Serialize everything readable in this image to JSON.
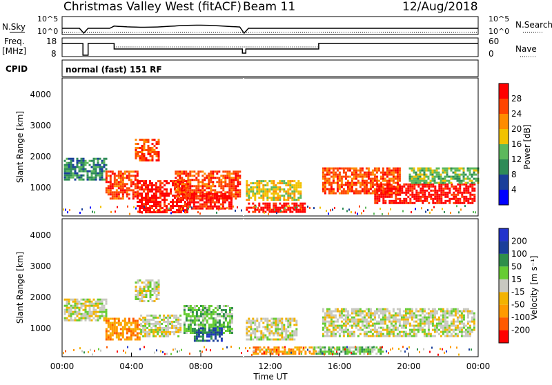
{
  "header": {
    "title": "Christmas Valley West (fitACF)",
    "beam": "Beam 11",
    "date": "12/Aug/2018"
  },
  "top_panels": {
    "nsky_label": "N.Sky",
    "nsearch_label": "N.Search",
    "noise_ticks": [
      "10^5",
      "10^0"
    ],
    "freq_label_1": "Freq.",
    "freq_label_2": "[MHz]",
    "freq_ticks": [
      "18",
      "8"
    ],
    "nave_label": "Nave",
    "nave_ticks": [
      "60",
      "0"
    ],
    "cpid_label": "CPID",
    "cpid_text": "normal (fast) 151 RF"
  },
  "colors": {
    "power": [
      "#0000ff",
      "#1a3f9a",
      "#2e8b57",
      "#5cb85c",
      "#f2c200",
      "#ff8c00",
      "#ff4500",
      "#ff0000"
    ],
    "velocity": [
      "#ff0000",
      "#ff5a00",
      "#ff9a00",
      "#f3b300",
      "#c8c8c0",
      "#66cc33",
      "#2f8f4a",
      "#1a3f9a",
      "#2233cc"
    ]
  },
  "chart_data": [
    {
      "type": "heatmap",
      "name": "power",
      "ylabel": "Slant Range [km]",
      "yticks": [
        1000,
        2000,
        3000,
        4000
      ],
      "ylim": [
        180,
        4500
      ],
      "xlim": [
        "00:00",
        "24:00"
      ],
      "colorbar_label": "Power [dB]",
      "colorbar_ticks": [
        "4",
        "8",
        "12",
        "16",
        "20",
        "24",
        "28"
      ],
      "regions": [
        {
          "t0": 0.1,
          "t1": 2.6,
          "r0": 1300,
          "r1": 2000,
          "level": 2
        },
        {
          "t0": 2.5,
          "t1": 4.3,
          "r0": 700,
          "r1": 1600,
          "level": 6
        },
        {
          "t0": 4.2,
          "t1": 5.6,
          "r0": 1900,
          "r1": 2600,
          "level": 6
        },
        {
          "t0": 4.3,
          "t1": 7.2,
          "r0": 300,
          "r1": 1300,
          "level": 7
        },
        {
          "t0": 6.5,
          "t1": 10.3,
          "r0": 700,
          "r1": 1600,
          "level": 6
        },
        {
          "t0": 7.2,
          "t1": 9.8,
          "r0": 400,
          "r1": 900,
          "level": 7
        },
        {
          "t0": 10.6,
          "t1": 13.8,
          "r0": 700,
          "r1": 1300,
          "level": 4
        },
        {
          "t0": 10.6,
          "t1": 14.0,
          "r0": 300,
          "r1": 600,
          "level": 7
        },
        {
          "t0": 15.0,
          "t1": 19.5,
          "r0": 900,
          "r1": 1700,
          "level": 6
        },
        {
          "t0": 18.0,
          "t1": 23.8,
          "r0": 600,
          "r1": 1200,
          "level": 7
        },
        {
          "t0": 20.0,
          "t1": 24.0,
          "r0": 1200,
          "r1": 1700,
          "level": 3
        }
      ]
    },
    {
      "type": "heatmap",
      "name": "velocity",
      "ylabel": "Slant Range [km]",
      "yticks": [
        1000,
        2000,
        3000,
        4000
      ],
      "ylim": [
        180,
        4500
      ],
      "xlim": [
        "00:00",
        "24:00"
      ],
      "xticks": [
        "00:00",
        "04:00",
        "08:00",
        "12:00",
        "16:00",
        "20:00",
        "00:00"
      ],
      "xlabel": "Time UT",
      "colorbar_label": "Velocity [m s⁻¹]",
      "colorbar_ticks": [
        "-200",
        "-100",
        "-50",
        "-15",
        "15",
        "50",
        "100",
        "200"
      ],
      "regions": [
        {
          "t0": 0.1,
          "t1": 2.6,
          "r0": 1300,
          "r1": 2000,
          "level": 4
        },
        {
          "t0": 2.5,
          "t1": 4.5,
          "r0": 700,
          "r1": 1400,
          "level": 2
        },
        {
          "t0": 4.2,
          "t1": 5.6,
          "r0": 1900,
          "r1": 2600,
          "level": 4
        },
        {
          "t0": 4.5,
          "t1": 6.8,
          "r0": 800,
          "r1": 1500,
          "level": 4
        },
        {
          "t0": 7.0,
          "t1": 9.8,
          "r0": 900,
          "r1": 1800,
          "level": 5
        },
        {
          "t0": 7.6,
          "t1": 9.2,
          "r0": 700,
          "r1": 1100,
          "level": 7
        },
        {
          "t0": 10.6,
          "t1": 13.5,
          "r0": 700,
          "r1": 1400,
          "level": 4
        },
        {
          "t0": 11.0,
          "t1": 14.5,
          "r0": 250,
          "r1": 500,
          "level": 2
        },
        {
          "t0": 15.0,
          "t1": 23.8,
          "r0": 800,
          "r1": 1700,
          "level": 4
        },
        {
          "t0": 14.5,
          "t1": 18.5,
          "r0": 250,
          "r1": 500,
          "level": 5
        }
      ]
    }
  ]
}
